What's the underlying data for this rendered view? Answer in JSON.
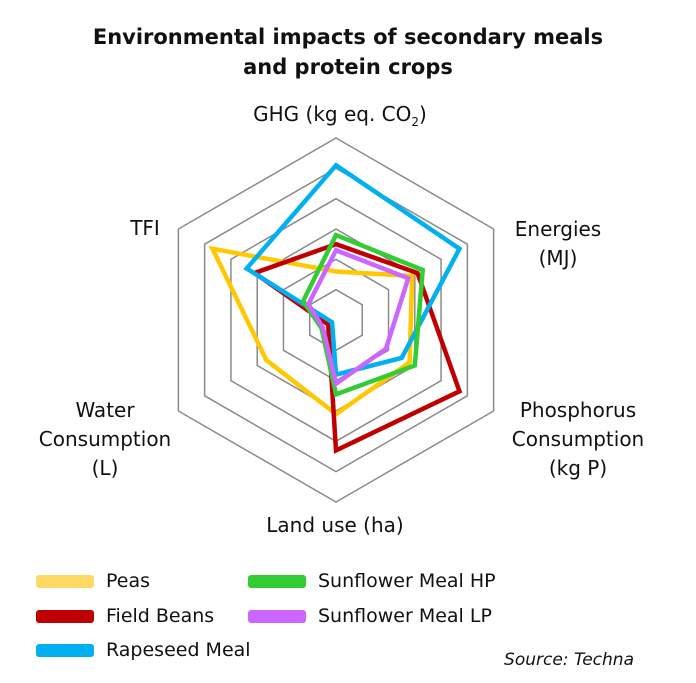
{
  "chart_data": {
    "type": "radar",
    "title_line1": "Environmental impacts of secondary meals",
    "title_line2": "and protein crops",
    "axes": [
      "GHG (kg eq. CO2)",
      "Energies (MJ)",
      "Phosphorus Consumption (kg P)",
      "Land use (ha)",
      "Water Consumption (L)",
      "TFI"
    ],
    "axis_labels": {
      "ghg": "GHG (kg eq. CO",
      "ghg_sub": "2",
      "ghg_end": ")",
      "energies": "Energies\n(MJ)",
      "phosphorus": "Phosphorus\nConsumption\n(kg P)",
      "land": "Land use (ha)",
      "water": "Water\nConsumption\n(L)",
      "tfi": "TFI"
    },
    "rings": 6,
    "range": [
      0,
      6
    ],
    "series": [
      {
        "name": "Peas",
        "color": "#FFC800",
        "legend_color": "#FFD966",
        "values": [
          1.6,
          2.9,
          2.8,
          3.1,
          2.65,
          4.7
        ]
      },
      {
        "name": "Field Beans",
        "color": "#C00000",
        "legend_color": "#C00000",
        "values": [
          2.5,
          3.1,
          4.7,
          4.3,
          0.3,
          3.1
        ]
      },
      {
        "name": "Rapeseed Meal",
        "color": "#00B0F0",
        "legend_color": "#00B0F0",
        "values": [
          5.1,
          4.7,
          2.5,
          1.8,
          0.15,
          3.4
        ]
      },
      {
        "name": "Sunflower Meal HP",
        "color": "#33CC33",
        "legend_color": "#33CC33",
        "values": [
          2.8,
          3.3,
          3.0,
          2.45,
          0.55,
          1.25
        ]
      },
      {
        "name": "Sunflower Meal LP",
        "color": "#CC66FF",
        "legend_color": "#CC66FF",
        "values": [
          2.3,
          2.75,
          1.9,
          2.1,
          0.5,
          1.05
        ]
      }
    ],
    "grid": true,
    "legend_position": "bottom",
    "source": "Source: Techna"
  }
}
